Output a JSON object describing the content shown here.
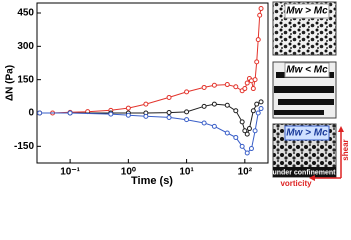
{
  "chart_data": {
    "type": "line",
    "ylabel": "ΔN (Pa)",
    "xlabel": "Time (s)",
    "xscale": "log",
    "xlim": [
      0.027,
      250
    ],
    "ylim": [
      -225,
      495
    ],
    "xticks": [
      {
        "value": 0.1,
        "label": "10⁻¹"
      },
      {
        "value": 1,
        "label": "10⁰"
      },
      {
        "value": 10,
        "label": "10¹"
      },
      {
        "value": 100,
        "label": "10²"
      }
    ],
    "yticks": [
      -150,
      0,
      150,
      300,
      450
    ],
    "series": [
      {
        "name": "Mw > Mc",
        "color": "#e3342c",
        "x": [
          0.03,
          0.05,
          0.1,
          0.2,
          0.5,
          1,
          2,
          5,
          10,
          20,
          30,
          50,
          70,
          90,
          100,
          110,
          120,
          130,
          140,
          150,
          160,
          170,
          180,
          190
        ],
        "values": [
          0,
          0,
          3,
          6,
          12,
          22,
          40,
          70,
          95,
          115,
          125,
          128,
          118,
          100,
          110,
          135,
          155,
          145,
          110,
          150,
          230,
          330,
          440,
          470
        ]
      },
      {
        "name": "Mw < Mc",
        "color": "#1e1e1e",
        "x": [
          0.03,
          0.1,
          0.5,
          1,
          2,
          5,
          10,
          20,
          30,
          50,
          70,
          90,
          100,
          110,
          120,
          140,
          160,
          190
        ],
        "values": [
          0,
          0,
          0,
          0,
          0,
          2,
          5,
          30,
          40,
          35,
          10,
          -40,
          -80,
          -95,
          -70,
          10,
          40,
          50
        ]
      },
      {
        "name": "Mw > Mc under confinement",
        "color": "#3a5fc8",
        "x": [
          0.03,
          0.1,
          0.5,
          1,
          2,
          5,
          10,
          20,
          30,
          50,
          70,
          90,
          110,
          130,
          150,
          170,
          190
        ],
        "values": [
          0,
          0,
          -5,
          -10,
          -15,
          -20,
          -30,
          -45,
          -60,
          -90,
          -110,
          -150,
          -180,
          -160,
          -80,
          0,
          20
        ]
      }
    ],
    "panel_labels": [
      "Mw > Mc",
      "Mw < Mc",
      "Mw > Mc"
    ],
    "confinement_label": "under confinement",
    "shear_label": "shear",
    "vorticity_label": "vorticity"
  }
}
